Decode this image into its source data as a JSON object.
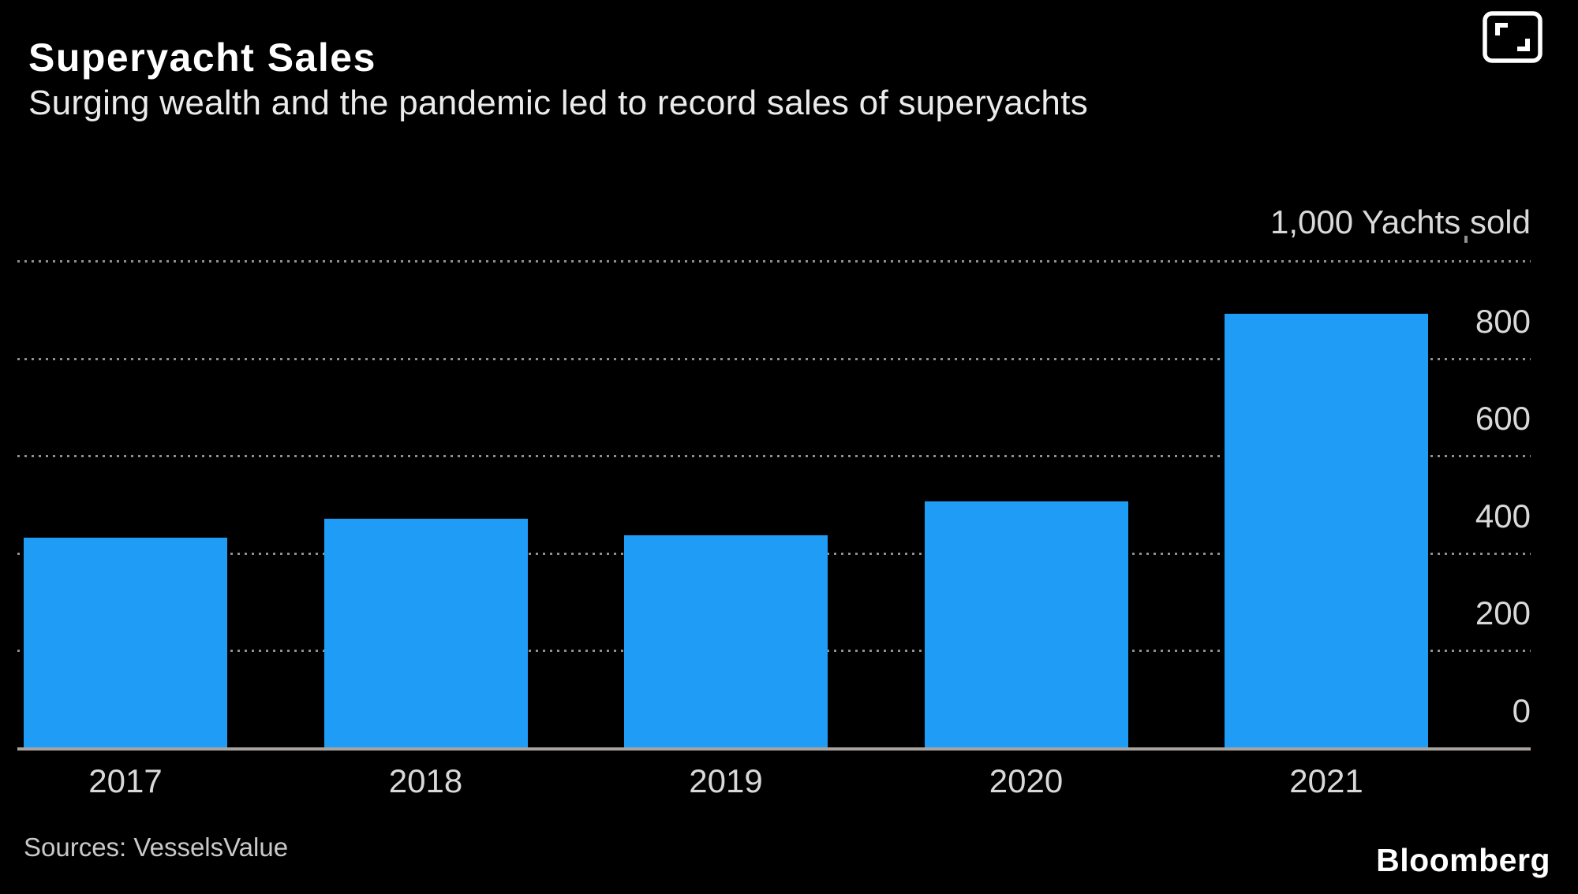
{
  "header": {
    "title": "Superyacht Sales",
    "subtitle": "Surging wealth and the pandemic led to record sales of superyachts"
  },
  "chart_data": {
    "type": "bar",
    "title": "Superyacht Sales",
    "subtitle": "Surging wealth and the pandemic led to record sales of superyachts",
    "categories": [
      "2017",
      "2018",
      "2019",
      "2020",
      "2021"
    ],
    "values": [
      430,
      470,
      435,
      505,
      890
    ],
    "series_name": "Yachts sold",
    "unit_label": "1,000 Yachts sold",
    "xlabel": "",
    "ylabel": "Yachts sold",
    "ylim": [
      0,
      1000
    ],
    "yticks": [
      800,
      600,
      400,
      200,
      0
    ],
    "gridline_values": [
      1000,
      800,
      600,
      400,
      200
    ],
    "grid": "horizontal-dotted",
    "legend": "none",
    "bar_color": "#1f9cf6"
  },
  "footer": {
    "source": "Sources: VesselsValue",
    "brand": "Bloomberg"
  },
  "icons": {
    "expand": "expand-icon"
  },
  "colors": {
    "background": "#000000",
    "bar": "#1f9cf6",
    "gridline": "#909090",
    "axis_line": "#a8a49d",
    "tick_label": "#d9d9d9",
    "title": "#ffffff",
    "subtitle": "#ebebeb",
    "source": "#c9c9c9"
  }
}
